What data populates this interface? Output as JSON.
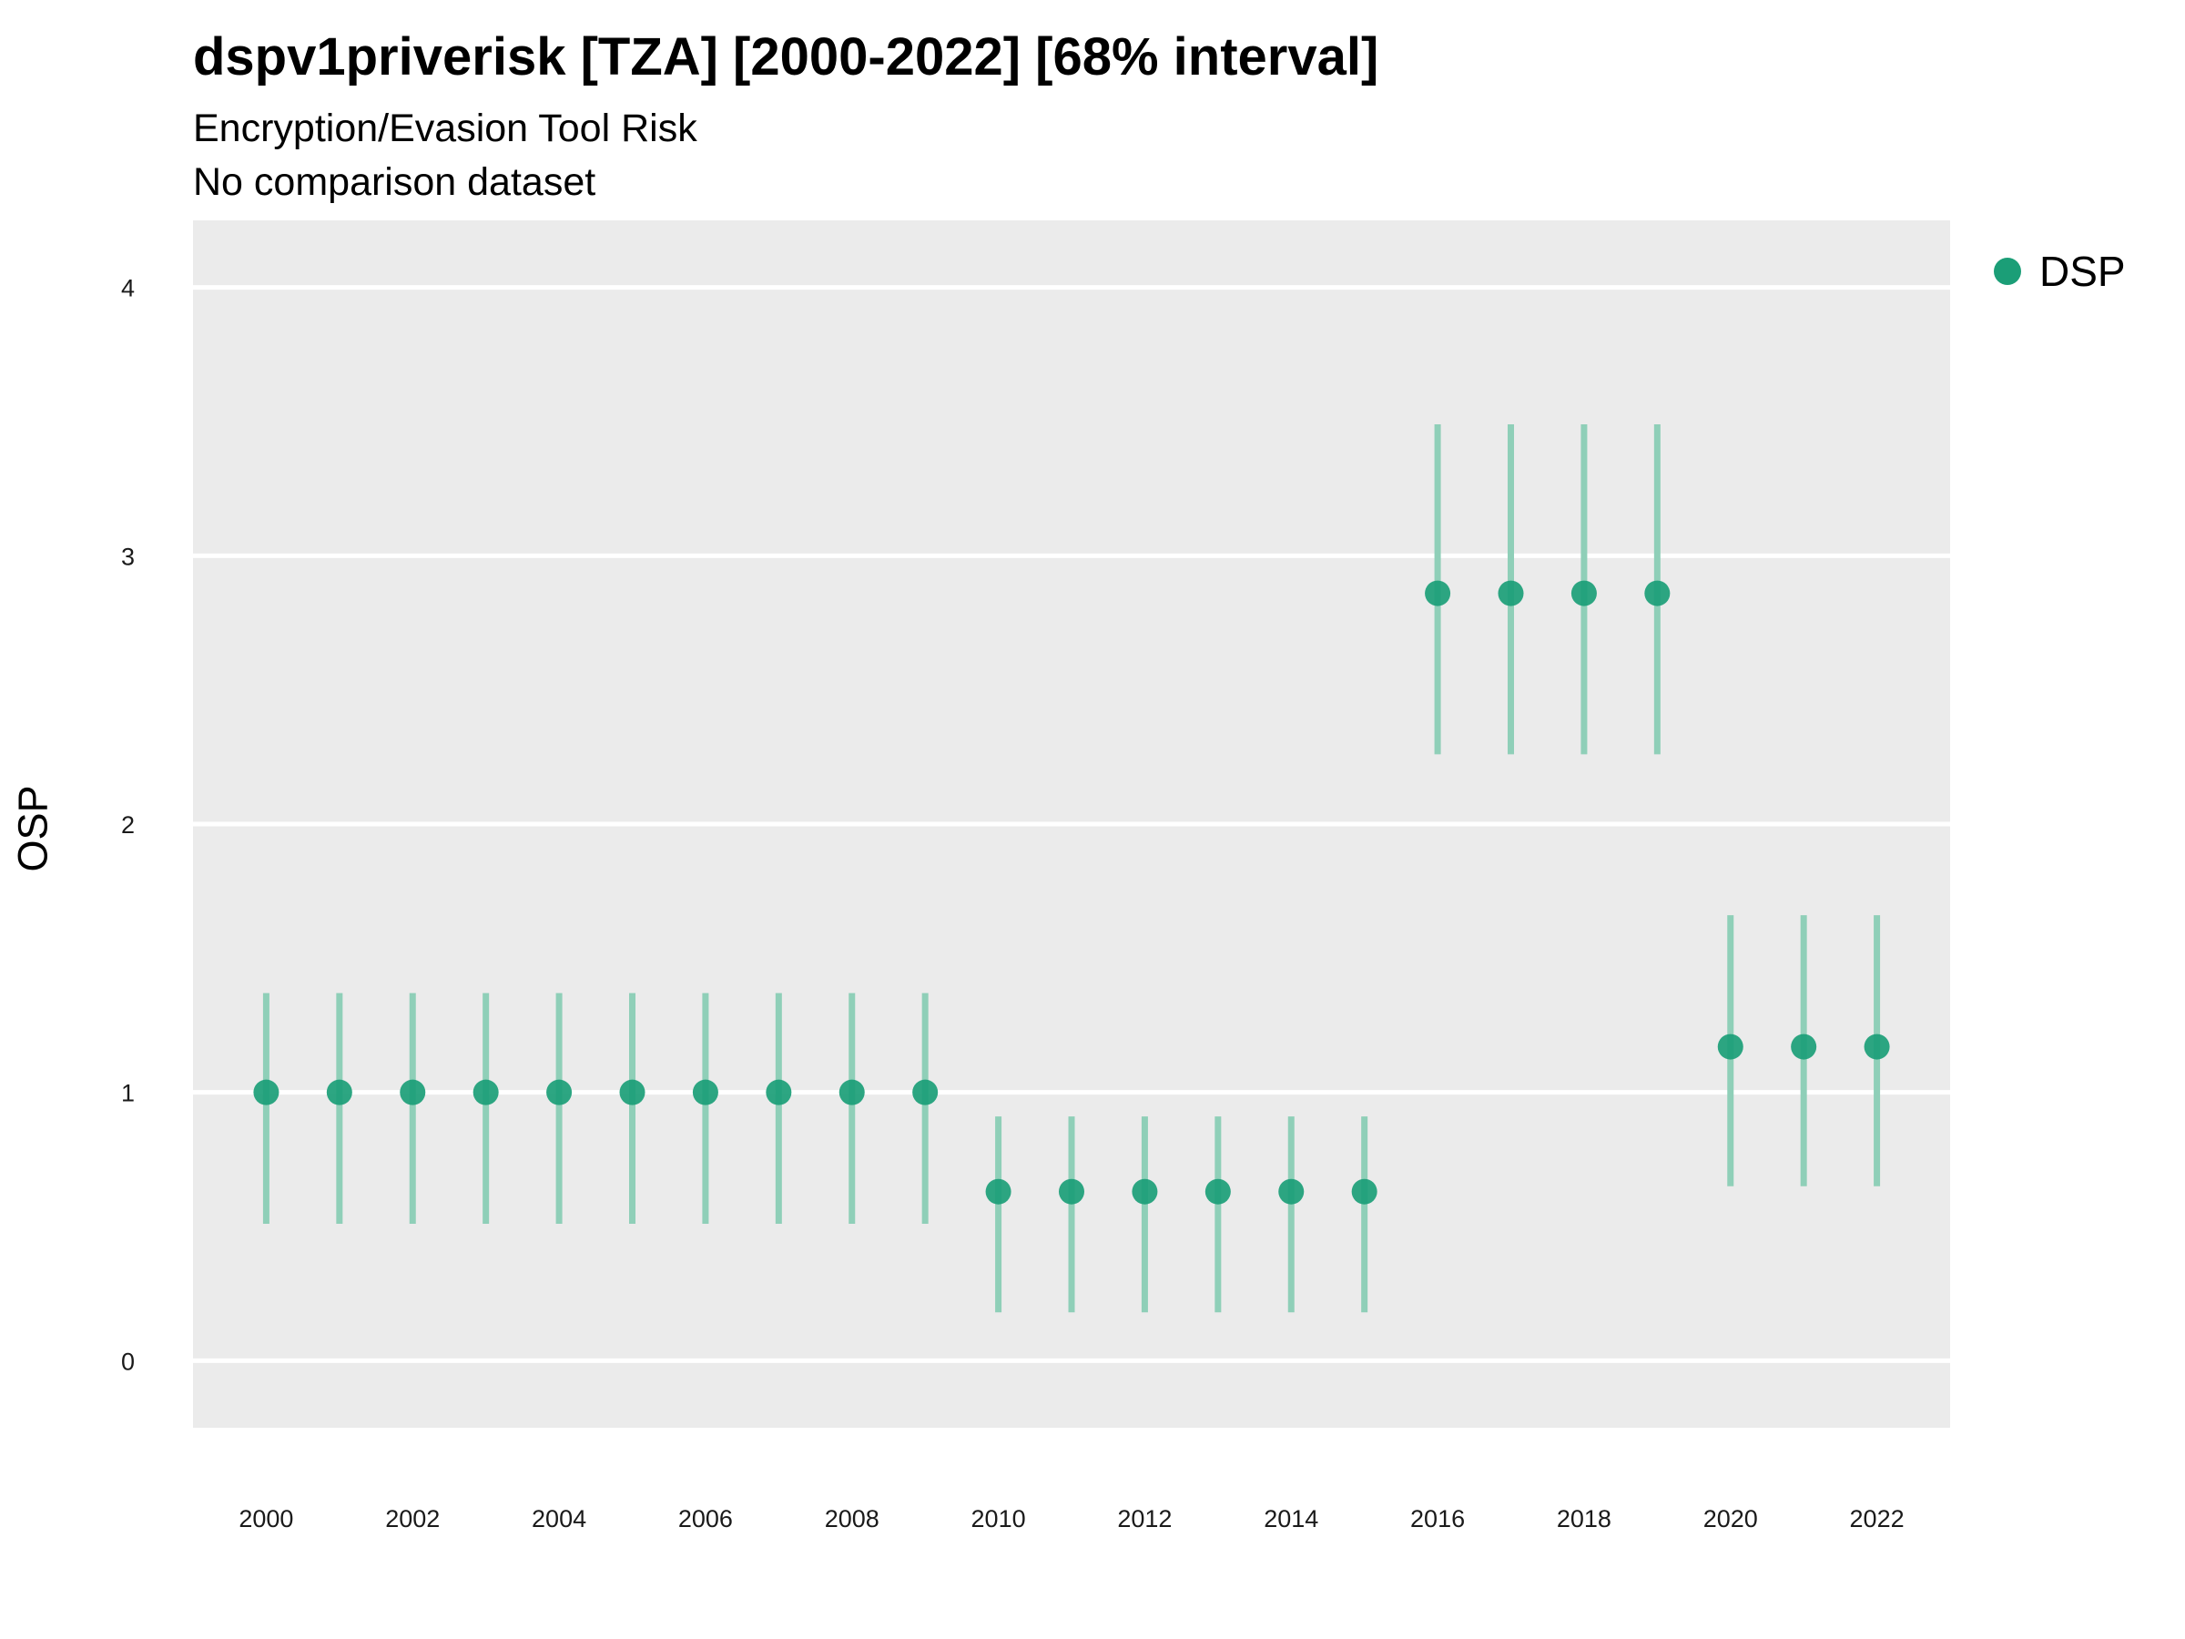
{
  "chart_data": {
    "type": "scatter",
    "title": "dspv1priverisk [TZA] [2000-2022] [68% interval]",
    "subtitles": [
      "Encryption/Evasion Tool Risk",
      "No comparison dataset"
    ],
    "xlabel": "",
    "ylabel": "OSP",
    "ylim": [
      -0.25,
      4.25
    ],
    "xlim": [
      1999,
      2023
    ],
    "yticks": [
      0,
      1,
      2,
      3,
      4
    ],
    "xticks": [
      2000,
      2002,
      2004,
      2006,
      2008,
      2010,
      2012,
      2014,
      2016,
      2018,
      2020,
      2022
    ],
    "grid": true,
    "legend_position": "right",
    "colors": {
      "point": "#1b9e77",
      "interval": "#8fcfb8",
      "panel": "#ebebeb",
      "grid": "#ffffff"
    },
    "series": [
      {
        "name": "DSP",
        "points": [
          {
            "x": 2000,
            "y": 1.0,
            "low": 0.51,
            "high": 1.37
          },
          {
            "x": 2001,
            "y": 1.0,
            "low": 0.51,
            "high": 1.37
          },
          {
            "x": 2002,
            "y": 1.0,
            "low": 0.51,
            "high": 1.37
          },
          {
            "x": 2003,
            "y": 1.0,
            "low": 0.51,
            "high": 1.37
          },
          {
            "x": 2004,
            "y": 1.0,
            "low": 0.51,
            "high": 1.37
          },
          {
            "x": 2005,
            "y": 1.0,
            "low": 0.51,
            "high": 1.37
          },
          {
            "x": 2006,
            "y": 1.0,
            "low": 0.51,
            "high": 1.37
          },
          {
            "x": 2007,
            "y": 1.0,
            "low": 0.51,
            "high": 1.37
          },
          {
            "x": 2008,
            "y": 1.0,
            "low": 0.51,
            "high": 1.37
          },
          {
            "x": 2009,
            "y": 1.0,
            "low": 0.51,
            "high": 1.37
          },
          {
            "x": 2010,
            "y": 0.63,
            "low": 0.18,
            "high": 0.91
          },
          {
            "x": 2011,
            "y": 0.63,
            "low": 0.18,
            "high": 0.91
          },
          {
            "x": 2012,
            "y": 0.63,
            "low": 0.18,
            "high": 0.91
          },
          {
            "x": 2013,
            "y": 0.63,
            "low": 0.18,
            "high": 0.91
          },
          {
            "x": 2014,
            "y": 0.63,
            "low": 0.18,
            "high": 0.91
          },
          {
            "x": 2015,
            "y": 0.63,
            "low": 0.18,
            "high": 0.91
          },
          {
            "x": 2016,
            "y": 2.86,
            "low": 2.26,
            "high": 3.49
          },
          {
            "x": 2017,
            "y": 2.86,
            "low": 2.26,
            "high": 3.49
          },
          {
            "x": 2018,
            "y": 2.86,
            "low": 2.26,
            "high": 3.49
          },
          {
            "x": 2019,
            "y": 2.86,
            "low": 2.26,
            "high": 3.49
          },
          {
            "x": 2020,
            "y": 1.17,
            "low": 0.65,
            "high": 1.66
          },
          {
            "x": 2021,
            "y": 1.17,
            "low": 0.65,
            "high": 1.66
          },
          {
            "x": 2022,
            "y": 1.17,
            "low": 0.65,
            "high": 1.66
          }
        ]
      }
    ]
  }
}
